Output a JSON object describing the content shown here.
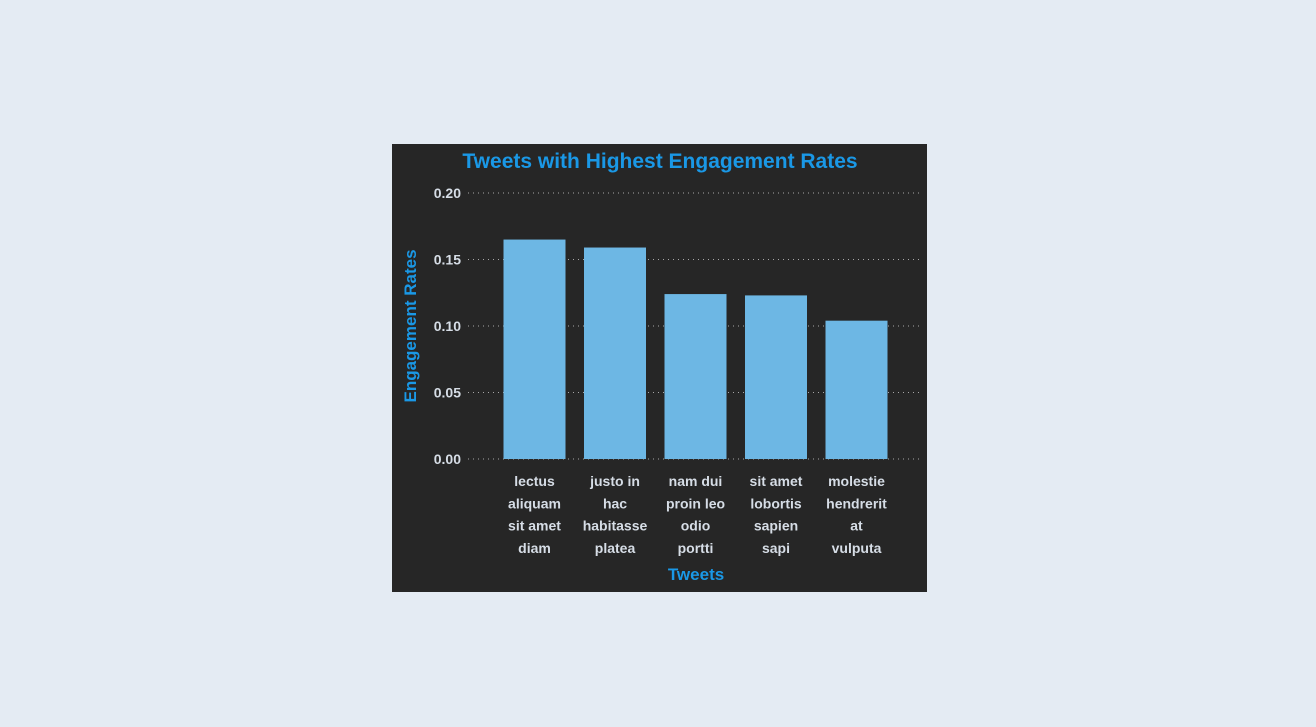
{
  "chart_data": {
    "type": "bar",
    "title": "Tweets with Highest Engagement Rates",
    "xlabel": "Tweets",
    "ylabel": "Engagement Rates",
    "categories": [
      [
        "lectus",
        "aliquam",
        "sit amet",
        "diam"
      ],
      [
        "justo in",
        "hac",
        "habitasse",
        "platea"
      ],
      [
        "nam dui",
        "proin leo",
        "odio",
        "portti"
      ],
      [
        "sit amet",
        "lobortis",
        "sapien",
        "sapi"
      ],
      [
        "molestie",
        "hendrerit",
        "at",
        "vulputa"
      ]
    ],
    "values": [
      0.165,
      0.159,
      0.124,
      0.123,
      0.104
    ],
    "ylim": [
      0,
      0.2
    ],
    "yticks": [
      "0.00",
      "0.05",
      "0.10",
      "0.15",
      "0.20"
    ],
    "grid": true,
    "colors": {
      "panel_background": "#262626",
      "page_background": "#e4ebf3",
      "bar": "#6db7e4",
      "title": "#1a98e6",
      "tick_text": "#d6dde6"
    }
  }
}
